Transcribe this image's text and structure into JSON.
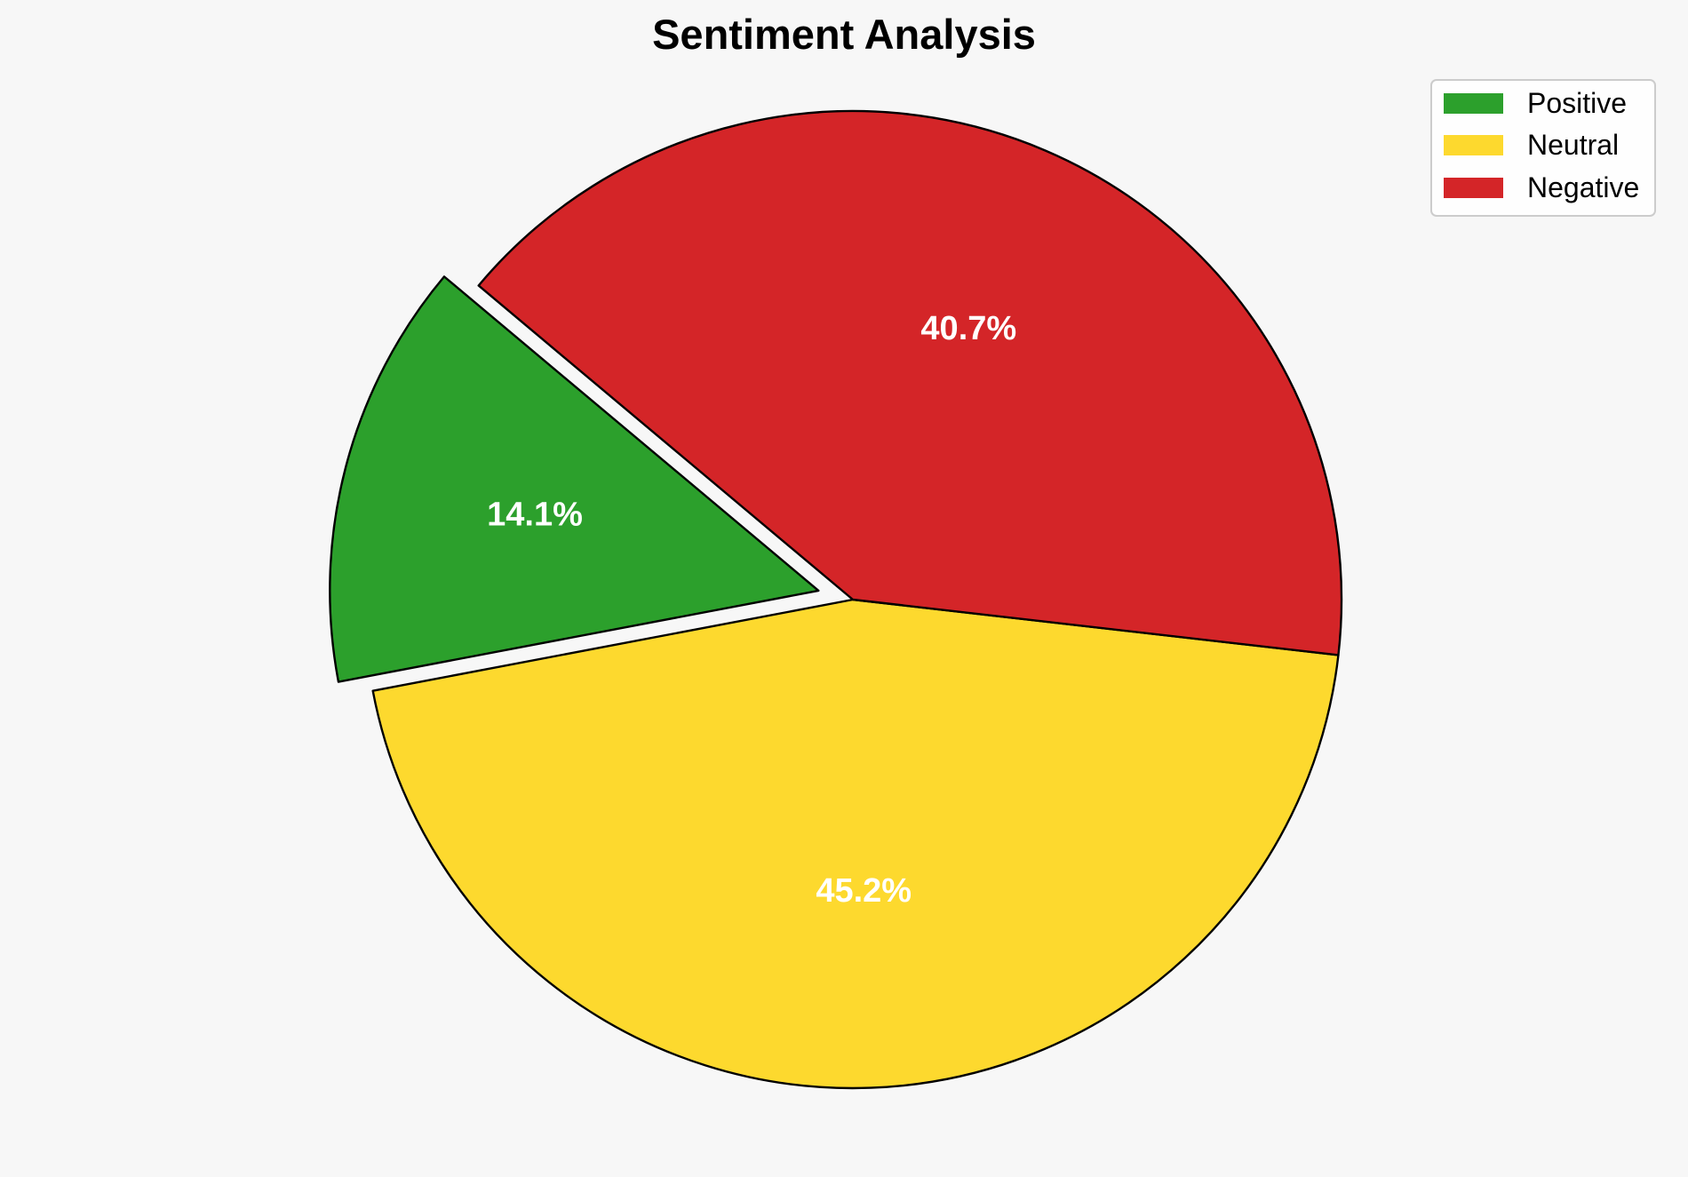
{
  "chart_data": {
    "type": "pie",
    "title": "Sentiment Analysis",
    "labels": [
      "Positive",
      "Neutral",
      "Negative"
    ],
    "values": [
      14.1,
      45.2,
      40.7
    ],
    "value_labels": [
      "14.1%",
      "45.2%",
      "40.7%"
    ],
    "colors": [
      "#2ca02c",
      "#fdd92e",
      "#d42528"
    ],
    "exploded": [
      true,
      false,
      false
    ],
    "legend_placement": "top-right",
    "grid": false
  }
}
